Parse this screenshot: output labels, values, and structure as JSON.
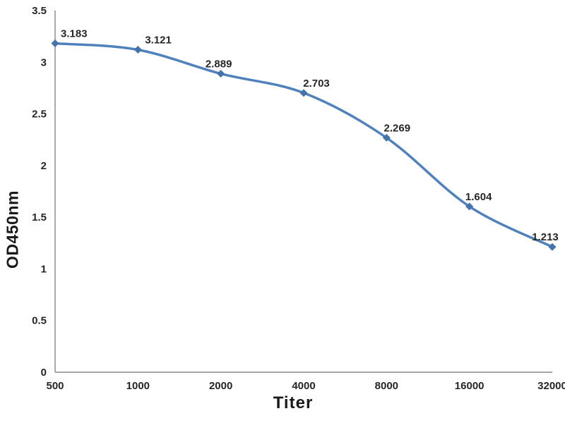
{
  "chart_data": {
    "type": "line",
    "title": "",
    "xlabel": "Titer",
    "ylabel": "OD450nm",
    "categories": [
      "500",
      "1000",
      "2000",
      "4000",
      "8000",
      "16000",
      "32000"
    ],
    "series": [
      {
        "name": "OD450nm",
        "values": [
          3.183,
          3.121,
          2.889,
          2.703,
          2.269,
          1.604,
          1.213
        ]
      }
    ],
    "data_labels": [
      "3.183",
      "3.121",
      "2.889",
      "2.703",
      "2.269",
      "1.604",
      "1.213"
    ],
    "y_ticks": [
      "0",
      "0.5",
      "1",
      "1.5",
      "2",
      "2.5",
      "3",
      "3.5"
    ],
    "y_tick_values": [
      0,
      0.5,
      1,
      1.5,
      2,
      2.5,
      3,
      3.5
    ],
    "ylim": [
      0,
      3.5
    ],
    "grid": false,
    "legend_position": "none",
    "marker_shape": "diamond",
    "smooth_line": true,
    "colors": {
      "line": "#4f81bd",
      "marker": "#4273ab",
      "x_axis": "#a6a6a6",
      "y_axis": "#8c8c8c",
      "text": "#262626",
      "background": "#ffffff"
    }
  }
}
